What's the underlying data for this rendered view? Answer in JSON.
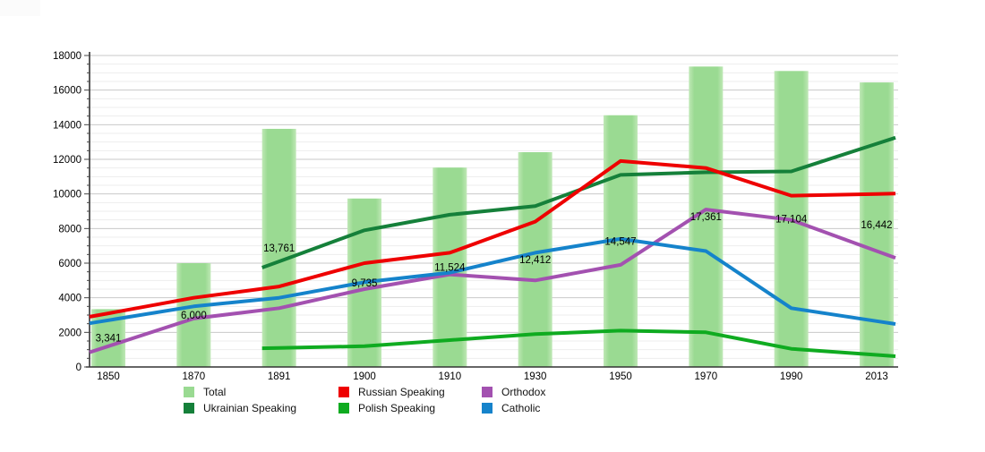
{
  "chart_data": {
    "type": "bar+line",
    "title": "",
    "xlabel": "",
    "ylabel": "",
    "grid": "on",
    "legend_position": "bottom",
    "categories": [
      "1850",
      "1870",
      "1891",
      "1900",
      "1910",
      "1930",
      "1950",
      "1970",
      "1990",
      "2013"
    ],
    "y_axis": {
      "min": 0,
      "max": 18000,
      "major_step": 2000,
      "minor_step": 500,
      "tick_labels": [
        "0",
        "2000",
        "4000",
        "6000",
        "8000",
        "10000",
        "12000",
        "14000",
        "16000",
        "18000"
      ]
    },
    "bars": {
      "name": "Total",
      "color": "#9ada92",
      "edge_color": "#bfe8b6",
      "values": [
        3341,
        6000,
        13761,
        9735,
        11524,
        12412,
        14547,
        17361,
        17104,
        16442
      ],
      "labels": [
        "3,341",
        "6,000",
        "13,761",
        "9,735",
        "11,524",
        "12,412",
        "14,547",
        "17,361",
        "17,104",
        "16,442"
      ]
    },
    "line_series": [
      {
        "name": "Ukrainian Speaking",
        "color": "#15803a",
        "values": [
          null,
          null,
          6100,
          7900,
          8800,
          9300,
          11100,
          11250,
          11300,
          12900
        ]
      },
      {
        "name": "Russian Speaking",
        "color": "#ee0000",
        "values": [
          3100,
          4000,
          4650,
          6000,
          6600,
          8400,
          11900,
          11500,
          9900,
          10000
        ]
      },
      {
        "name": "Polish Speaking",
        "color": "#0fab20",
        "values": [
          null,
          null,
          1100,
          1200,
          1550,
          1900,
          2100,
          2000,
          1050,
          700
        ]
      },
      {
        "name": "Orthodox",
        "color": "#a351b0",
        "values": [
          1200,
          2800,
          3400,
          4500,
          5350,
          5000,
          5900,
          9100,
          8500,
          6700
        ]
      },
      {
        "name": "Catholic",
        "color": "#1583cb",
        "values": [
          2700,
          3500,
          4000,
          4900,
          5450,
          6600,
          7400,
          6700,
          3400,
          2650
        ]
      }
    ]
  },
  "legend": {
    "items": [
      {
        "label": "Total",
        "color": "#9ada92"
      },
      {
        "label": "Ukrainian Speaking",
        "color": "#15803a"
      },
      {
        "label": "Russian Speaking",
        "color": "#ee0000"
      },
      {
        "label": "Polish Speaking",
        "color": "#0fab20"
      },
      {
        "label": "Orthodox",
        "color": "#a351b0"
      },
      {
        "label": "Catholic",
        "color": "#1583cb"
      }
    ]
  }
}
